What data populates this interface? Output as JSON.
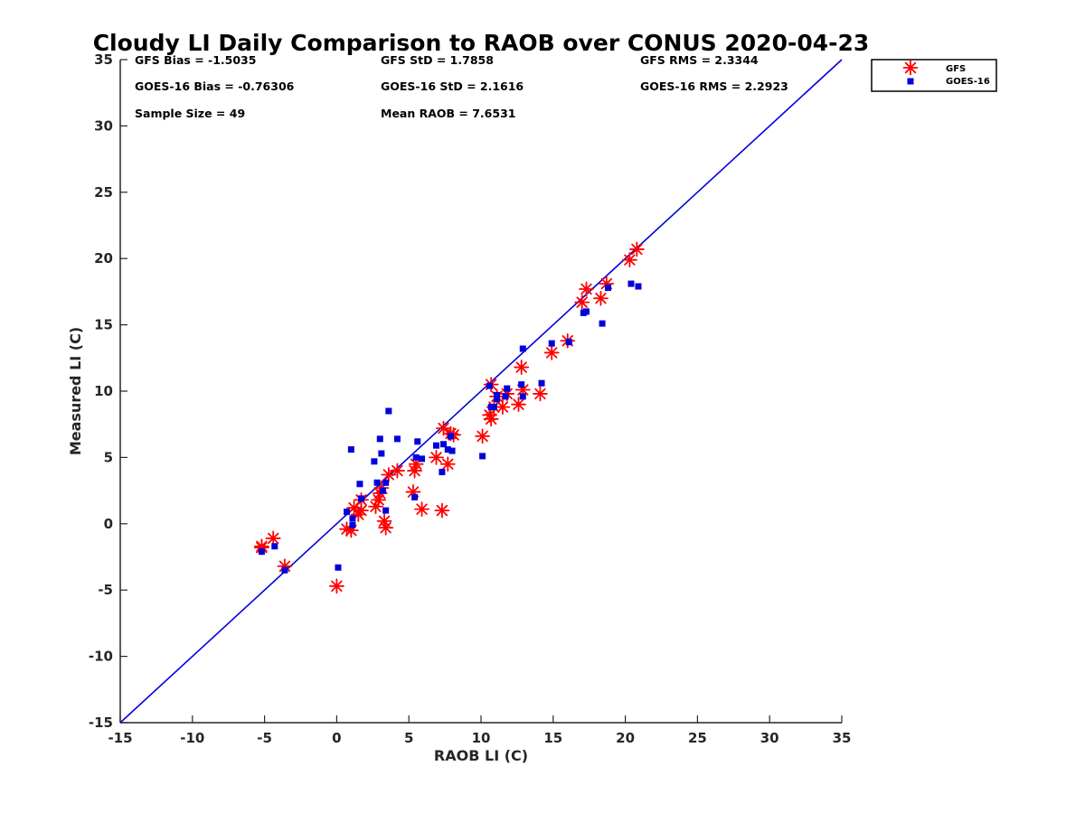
{
  "chart_data": {
    "type": "scatter",
    "title": "Cloudy LI Daily Comparison to RAOB over CONUS 2020-04-23",
    "xlabel": "RAOB LI (C)",
    "ylabel": "Measured LI (C)",
    "xlim": [
      -15,
      35
    ],
    "ylim": [
      -15,
      35
    ],
    "xticks": [
      -15,
      -10,
      -5,
      0,
      5,
      10,
      15,
      20,
      25,
      30,
      35
    ],
    "yticks": [
      -15,
      -10,
      -5,
      0,
      5,
      10,
      15,
      20,
      25,
      30,
      35
    ],
    "grid": false,
    "legend_position": "top-right (outside plot)",
    "reference_line": {
      "type": "one-to-one",
      "color": "#0000dd"
    },
    "stats": [
      "GFS Bias = -1.5035",
      "GFS StD = 1.7858",
      "GFS RMS = 2.3344",
      "GOES-16 Bias = -0.76306",
      "GOES-16 StD = 2.1616",
      "GOES-16 RMS = 2.2923",
      "Sample Size = 49",
      "Mean RAOB = 7.6531"
    ],
    "series": [
      {
        "name": "GFS",
        "marker": "asterisk",
        "color": "#ff0000",
        "points": [
          [
            -5.2,
            -1.7
          ],
          [
            -4.4,
            -1.1
          ],
          [
            -3.6,
            -3.2
          ],
          [
            0.0,
            -4.7
          ],
          [
            0.7,
            -0.4
          ],
          [
            1.0,
            -0.5
          ],
          [
            1.2,
            1.2
          ],
          [
            1.5,
            0.7
          ],
          [
            1.7,
            1.0
          ],
          [
            1.7,
            1.8
          ],
          [
            2.7,
            1.3
          ],
          [
            2.9,
            1.8
          ],
          [
            3.0,
            2.3
          ],
          [
            3.1,
            2.7
          ],
          [
            3.3,
            0.2
          ],
          [
            3.4,
            -0.3
          ],
          [
            3.6,
            3.7
          ],
          [
            4.2,
            4.0
          ],
          [
            5.3,
            2.4
          ],
          [
            5.4,
            4.0
          ],
          [
            5.5,
            4.5
          ],
          [
            5.9,
            1.1
          ],
          [
            6.9,
            5.0
          ],
          [
            7.3,
            1.0
          ],
          [
            7.4,
            7.2
          ],
          [
            7.7,
            4.5
          ],
          [
            7.9,
            6.8
          ],
          [
            8.1,
            6.7
          ],
          [
            10.1,
            6.6
          ],
          [
            10.6,
            8.2
          ],
          [
            10.7,
            10.5
          ],
          [
            10.7,
            7.9
          ],
          [
            10.9,
            8.8
          ],
          [
            11.1,
            9.6
          ],
          [
            11.5,
            8.8
          ],
          [
            11.8,
            9.8
          ],
          [
            12.6,
            9.0
          ],
          [
            12.8,
            11.8
          ],
          [
            12.9,
            10.1
          ],
          [
            14.1,
            9.8
          ],
          [
            14.9,
            12.9
          ],
          [
            16.0,
            13.8
          ],
          [
            17.0,
            16.7
          ],
          [
            17.3,
            17.7
          ],
          [
            18.3,
            17.0
          ],
          [
            18.7,
            18.1
          ],
          [
            20.3,
            19.9
          ],
          [
            20.8,
            20.7
          ],
          [
            -5.2,
            -1.8
          ]
        ]
      },
      {
        "name": "GOES-16",
        "marker": "square",
        "color": "#0000dd",
        "points": [
          [
            -5.2,
            -2.1
          ],
          [
            -4.3,
            -1.7
          ],
          [
            -3.6,
            -3.5
          ],
          [
            0.1,
            -3.3
          ],
          [
            0.7,
            0.9
          ],
          [
            1.0,
            5.6
          ],
          [
            1.1,
            -0.1
          ],
          [
            1.1,
            0.4
          ],
          [
            1.6,
            3.0
          ],
          [
            1.7,
            1.9
          ],
          [
            2.6,
            4.7
          ],
          [
            2.8,
            3.1
          ],
          [
            3.0,
            6.4
          ],
          [
            3.1,
            5.3
          ],
          [
            3.2,
            2.5
          ],
          [
            3.4,
            1.0
          ],
          [
            3.4,
            3.1
          ],
          [
            3.6,
            8.5
          ],
          [
            4.2,
            6.4
          ],
          [
            5.4,
            2.0
          ],
          [
            5.5,
            5.0
          ],
          [
            5.6,
            6.2
          ],
          [
            5.9,
            4.9
          ],
          [
            6.9,
            5.9
          ],
          [
            7.3,
            3.9
          ],
          [
            7.4,
            6.0
          ],
          [
            7.7,
            5.6
          ],
          [
            7.9,
            6.6
          ],
          [
            8.0,
            5.5
          ],
          [
            10.1,
            5.1
          ],
          [
            10.6,
            10.4
          ],
          [
            10.7,
            8.8
          ],
          [
            10.9,
            8.8
          ],
          [
            11.1,
            9.7
          ],
          [
            11.1,
            9.4
          ],
          [
            11.7,
            9.6
          ],
          [
            11.8,
            10.2
          ],
          [
            12.8,
            10.5
          ],
          [
            12.9,
            9.6
          ],
          [
            12.9,
            13.2
          ],
          [
            14.2,
            10.6
          ],
          [
            14.9,
            13.6
          ],
          [
            16.1,
            13.7
          ],
          [
            17.1,
            15.9
          ],
          [
            17.3,
            16.0
          ],
          [
            18.4,
            15.1
          ],
          [
            18.8,
            17.8
          ],
          [
            20.4,
            18.1
          ],
          [
            20.9,
            17.9
          ]
        ]
      }
    ]
  }
}
